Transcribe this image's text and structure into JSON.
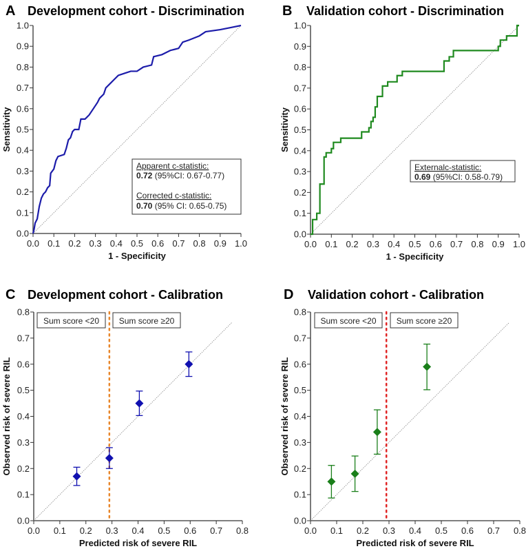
{
  "chart_data": [
    {
      "panel": "A",
      "type": "line",
      "title": "Development cohort - Discrimination",
      "xlabel": "1 - Specificity",
      "ylabel": "Sensitivity",
      "xlim": [
        0,
        1
      ],
      "ylim": [
        0,
        1
      ],
      "xticks": [
        "0.0",
        "0.1",
        "0.2",
        "0.3",
        "0.4",
        "0.5",
        "0.6",
        "0.7",
        "0.8",
        "0.9",
        "1.0"
      ],
      "yticks": [
        "0.0",
        "0.1",
        "0.2",
        "0.3",
        "0.4",
        "0.5",
        "0.6",
        "0.7",
        "0.8",
        "0.9",
        "1.0"
      ],
      "color": "#1c1caa",
      "reference_line": [
        [
          0,
          0
        ],
        [
          1,
          1
        ]
      ],
      "x": [
        0,
        0.005,
        0.01,
        0.02,
        0.025,
        0.03,
        0.04,
        0.05,
        0.06,
        0.07,
        0.08,
        0.085,
        0.1,
        0.11,
        0.12,
        0.15,
        0.16,
        0.17,
        0.18,
        0.19,
        0.2,
        0.22,
        0.23,
        0.25,
        0.27,
        0.29,
        0.31,
        0.32,
        0.34,
        0.35,
        0.37,
        0.39,
        0.41,
        0.44,
        0.47,
        0.5,
        0.53,
        0.57,
        0.58,
        0.62,
        0.66,
        0.7,
        0.72,
        0.75,
        0.8,
        0.83,
        0.9,
        0.95,
        1
      ],
      "y": [
        0,
        0.02,
        0.05,
        0.07,
        0.1,
        0.13,
        0.17,
        0.19,
        0.2,
        0.22,
        0.23,
        0.29,
        0.31,
        0.35,
        0.37,
        0.38,
        0.41,
        0.45,
        0.46,
        0.49,
        0.5,
        0.5,
        0.55,
        0.55,
        0.57,
        0.6,
        0.63,
        0.65,
        0.67,
        0.7,
        0.72,
        0.74,
        0.76,
        0.77,
        0.78,
        0.78,
        0.8,
        0.81,
        0.85,
        0.86,
        0.88,
        0.89,
        0.92,
        0.93,
        0.95,
        0.97,
        0.98,
        0.99,
        1
      ],
      "annotation": {
        "line1": "Apparent c-statistic:",
        "line2_bold": "0.72",
        "line2": " (95%CI: 0.67-0.77)",
        "line3": "Corrected c-statistic:",
        "line4_bold": "0.70",
        "line4": " (95% CI: 0.65-0.75)"
      }
    },
    {
      "panel": "B",
      "type": "line",
      "title": "Validation cohort - Discrimination",
      "xlabel": "1 - Specificity",
      "ylabel": "Sensitivity",
      "xlim": [
        0,
        1
      ],
      "ylim": [
        0,
        1
      ],
      "xticks": [
        "0.0",
        "0.1",
        "0.2",
        "0.3",
        "0.4",
        "0.5",
        "0.6",
        "0.7",
        "0.8",
        "0.9",
        "1.0"
      ],
      "yticks": [
        "0.0",
        "0.1",
        "0.2",
        "0.3",
        "0.4",
        "0.5",
        "0.6",
        "0.7",
        "0.8",
        "0.9",
        "1.0"
      ],
      "color": "#1f8a1f",
      "reference_line": [
        [
          0,
          0
        ],
        [
          1,
          1
        ]
      ],
      "x": [
        0,
        0.01,
        0.01,
        0.03,
        0.03,
        0.045,
        0.045,
        0.065,
        0.065,
        0.075,
        0.075,
        0.1,
        0.1,
        0.11,
        0.11,
        0.145,
        0.145,
        0.245,
        0.245,
        0.28,
        0.28,
        0.29,
        0.29,
        0.3,
        0.3,
        0.31,
        0.31,
        0.32,
        0.32,
        0.345,
        0.345,
        0.37,
        0.37,
        0.415,
        0.415,
        0.44,
        0.44,
        0.64,
        0.64,
        0.665,
        0.665,
        0.685,
        0.685,
        0.9,
        0.9,
        0.91,
        0.91,
        0.94,
        0.94,
        0.99,
        0.99,
        1
      ],
      "y": [
        0,
        0,
        0.07,
        0.07,
        0.1,
        0.1,
        0.24,
        0.24,
        0.37,
        0.37,
        0.39,
        0.39,
        0.41,
        0.41,
        0.44,
        0.44,
        0.46,
        0.46,
        0.49,
        0.49,
        0.51,
        0.51,
        0.54,
        0.54,
        0.56,
        0.56,
        0.61,
        0.61,
        0.66,
        0.66,
        0.71,
        0.71,
        0.73,
        0.73,
        0.76,
        0.76,
        0.78,
        0.78,
        0.83,
        0.83,
        0.85,
        0.85,
        0.88,
        0.88,
        0.9,
        0.9,
        0.93,
        0.93,
        0.95,
        0.95,
        1,
        1
      ],
      "annotation": {
        "line1": "Externalc-statistic:",
        "line2_bold": "0.69",
        "line2": " (95%CI: 0.58-0.79)"
      }
    },
    {
      "panel": "C",
      "type": "scatter",
      "title": "Development cohort - Calibration",
      "xlabel": "Predicted risk of severe RIL",
      "ylabel": "Observed risk of severe RIL",
      "xlim": [
        0,
        0.8
      ],
      "ylim": [
        0,
        0.8
      ],
      "xticks": [
        "0.0",
        "0.1",
        "0.2",
        "0.3",
        "0.4",
        "0.5",
        "0.6",
        "0.7",
        "0.8"
      ],
      "yticks": [
        "0.0",
        "0.1",
        "0.2",
        "0.3",
        "0.4",
        "0.5",
        "0.6",
        "0.7",
        "0.8"
      ],
      "color": "#1010b0",
      "cutoff": 0.29,
      "cutoff_color": "#e8862a",
      "reference_line": [
        [
          0,
          0
        ],
        [
          0.76,
          0.76
        ]
      ],
      "labels": [
        "Sum score <20",
        "Sum score ≥20"
      ],
      "points": [
        {
          "x": 0.165,
          "y": 0.17,
          "lo": 0.135,
          "hi": 0.205
        },
        {
          "x": 0.29,
          "y": 0.24,
          "lo": 0.2,
          "hi": 0.28
        },
        {
          "x": 0.405,
          "y": 0.45,
          "lo": 0.403,
          "hi": 0.497
        },
        {
          "x": 0.595,
          "y": 0.6,
          "lo": 0.553,
          "hi": 0.647
        }
      ]
    },
    {
      "panel": "D",
      "type": "scatter",
      "title": "Validation cohort - Calibration",
      "xlabel": "Predicted risk of severe RIL",
      "ylabel": "Observed risk of severe RIL",
      "xlim": [
        0,
        0.8
      ],
      "ylim": [
        0,
        0.8
      ],
      "xticks": [
        "0.0",
        "0.1",
        "0.2",
        "0.3",
        "0.4",
        "0.5",
        "0.6",
        "0.7",
        "0.8"
      ],
      "yticks": [
        "0.0",
        "0.1",
        "0.2",
        "0.3",
        "0.4",
        "0.5",
        "0.6",
        "0.7",
        "0.8"
      ],
      "color": "#1a7f1a",
      "cutoff": 0.29,
      "cutoff_color": "#e02424",
      "reference_line": [
        [
          0,
          0
        ],
        [
          0.76,
          0.76
        ]
      ],
      "labels": [
        "Sum score <20",
        "Sum score ≥20"
      ],
      "points": [
        {
          "x": 0.08,
          "y": 0.15,
          "lo": 0.087,
          "hi": 0.212
        },
        {
          "x": 0.17,
          "y": 0.18,
          "lo": 0.112,
          "hi": 0.248
        },
        {
          "x": 0.255,
          "y": 0.34,
          "lo": 0.255,
          "hi": 0.425
        },
        {
          "x": 0.445,
          "y": 0.59,
          "lo": 0.502,
          "hi": 0.677
        }
      ]
    }
  ]
}
